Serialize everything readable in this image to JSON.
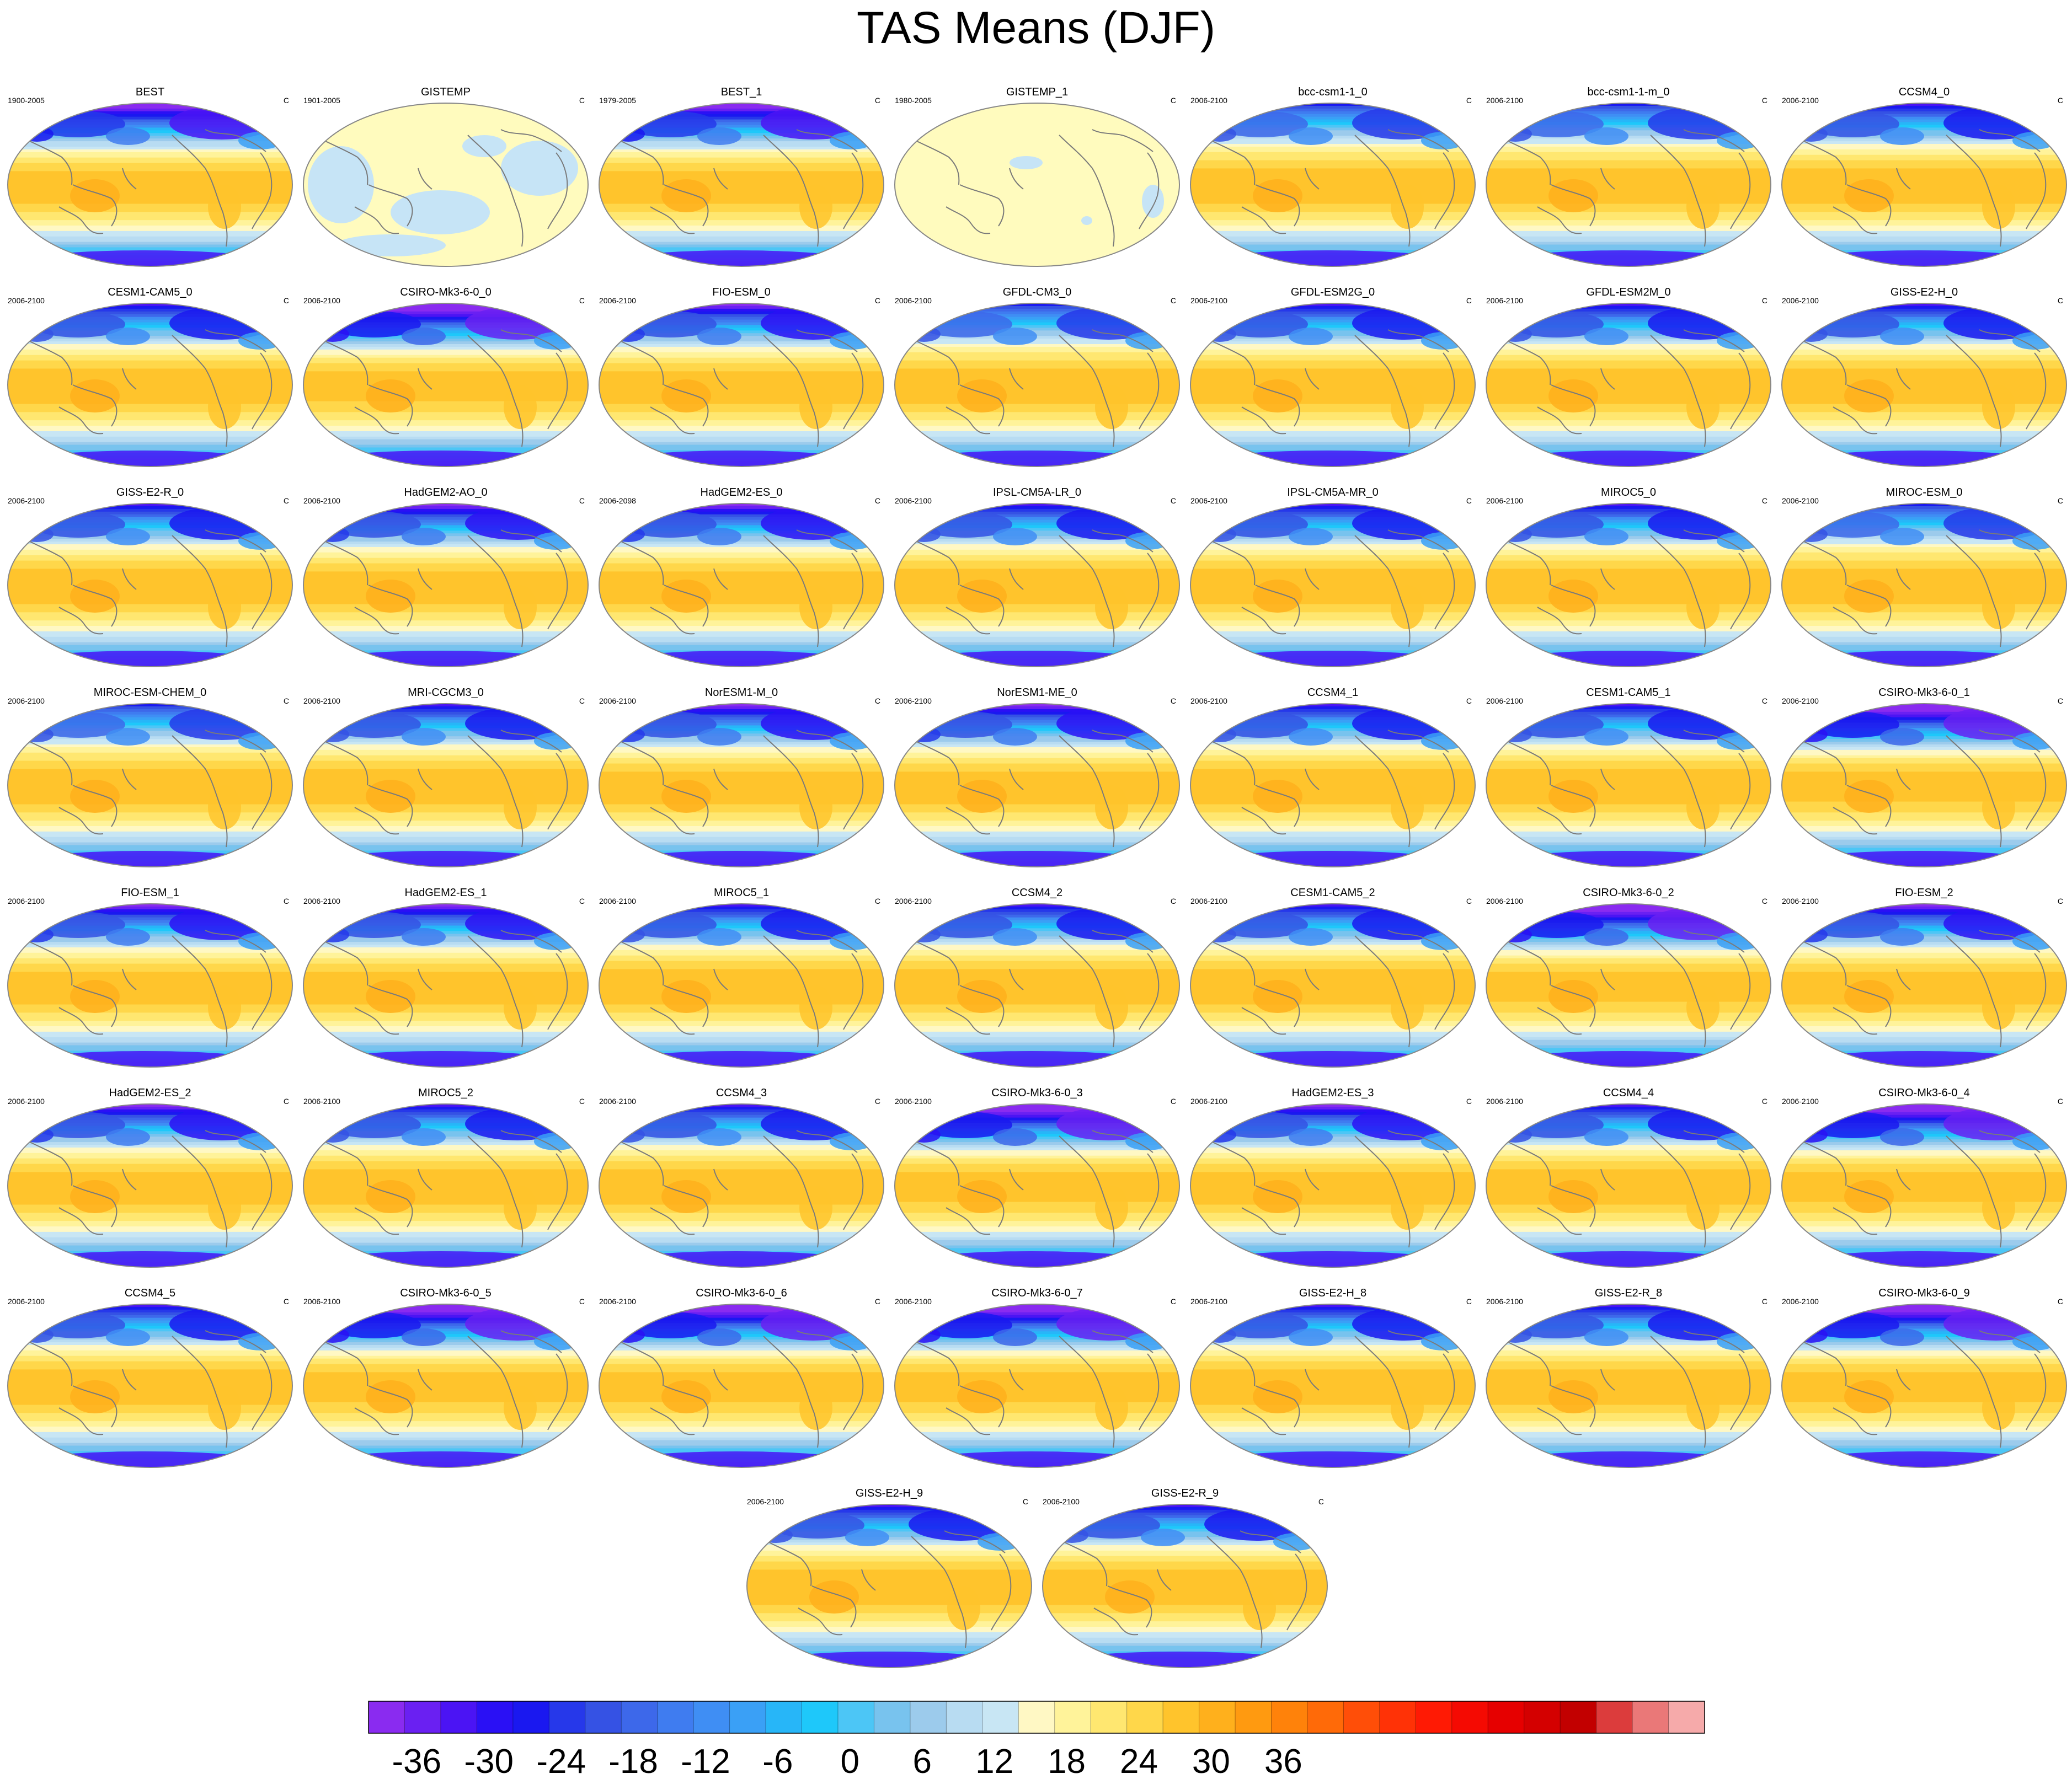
{
  "title": "TAS Means (DJF)",
  "unit": "C",
  "colors": {
    "outline": "#888888",
    "coast": "#7a7a7a",
    "gistemp_fill": "#fffbbe",
    "gistemp_lowfill": "#c6e4f6"
  },
  "chart_data": {
    "type": "heatmap",
    "title": "TAS Means (DJF)",
    "grid_columns": 7,
    "panels": [
      {
        "name": "BEST",
        "period": "1900-2005",
        "style": "full",
        "cold": 1.1
      },
      {
        "name": "GISTEMP",
        "period": "1901-2005",
        "style": "anomaly",
        "cold": 1.0
      },
      {
        "name": "BEST_1",
        "period": "1979-2005",
        "style": "full",
        "cold": 1.1
      },
      {
        "name": "GISTEMP_1",
        "period": "1980-2005",
        "style": "anomaly2",
        "cold": 1.0
      },
      {
        "name": "bcc-csm1-1_0",
        "period": "2006-2100",
        "style": "full",
        "cold": 0.8
      },
      {
        "name": "bcc-csm1-1-m_0",
        "period": "2006-2100",
        "style": "full",
        "cold": 0.8
      },
      {
        "name": "CCSM4_0",
        "period": "2006-2100",
        "style": "full",
        "cold": 0.9
      },
      {
        "name": "CESM1-CAM5_0",
        "period": "2006-2100",
        "style": "full",
        "cold": 0.9
      },
      {
        "name": "CSIRO-Mk3-6-0_0",
        "period": "2006-2100",
        "style": "full",
        "cold": 1.2
      },
      {
        "name": "FIO-ESM_0",
        "period": "2006-2100",
        "style": "full",
        "cold": 1.0
      },
      {
        "name": "GFDL-CM3_0",
        "period": "2006-2100",
        "style": "full",
        "cold": 0.8
      },
      {
        "name": "GFDL-ESM2G_0",
        "period": "2006-2100",
        "style": "full",
        "cold": 0.9
      },
      {
        "name": "GFDL-ESM2M_0",
        "period": "2006-2100",
        "style": "full",
        "cold": 0.9
      },
      {
        "name": "GISS-E2-H_0",
        "period": "2006-2100",
        "style": "full",
        "cold": 0.9
      },
      {
        "name": "GISS-E2-R_0",
        "period": "2006-2100",
        "style": "full",
        "cold": 0.9
      },
      {
        "name": "HadGEM2-AO_0",
        "period": "2006-2100",
        "style": "full",
        "cold": 1.0
      },
      {
        "name": "HadGEM2-ES_0",
        "period": "2006-2098",
        "style": "full",
        "cold": 1.0
      },
      {
        "name": "IPSL-CM5A-LR_0",
        "period": "2006-2100",
        "style": "full",
        "cold": 0.9
      },
      {
        "name": "IPSL-CM5A-MR_0",
        "period": "2006-2100",
        "style": "full",
        "cold": 0.9
      },
      {
        "name": "MIROC5_0",
        "period": "2006-2100",
        "style": "full",
        "cold": 0.9
      },
      {
        "name": "MIROC-ESM_0",
        "period": "2006-2100",
        "style": "full",
        "cold": 0.8
      },
      {
        "name": "MIROC-ESM-CHEM_0",
        "period": "2006-2100",
        "style": "full",
        "cold": 0.8
      },
      {
        "name": "MRI-CGCM3_0",
        "period": "2006-2100",
        "style": "full",
        "cold": 0.9
      },
      {
        "name": "NorESM1-M_0",
        "period": "2006-2100",
        "style": "full",
        "cold": 1.0
      },
      {
        "name": "NorESM1-ME_0",
        "period": "2006-2100",
        "style": "full",
        "cold": 1.0
      },
      {
        "name": "CCSM4_1",
        "period": "2006-2100",
        "style": "full",
        "cold": 0.9
      },
      {
        "name": "CESM1-CAM5_1",
        "period": "2006-2100",
        "style": "full",
        "cold": 0.9
      },
      {
        "name": "CSIRO-Mk3-6-0_1",
        "period": "2006-2100",
        "style": "full",
        "cold": 1.2
      },
      {
        "name": "FIO-ESM_1",
        "period": "2006-2100",
        "style": "full",
        "cold": 1.0
      },
      {
        "name": "HadGEM2-ES_1",
        "period": "2006-2100",
        "style": "full",
        "cold": 1.0
      },
      {
        "name": "MIROC5_1",
        "period": "2006-2100",
        "style": "full",
        "cold": 0.9
      },
      {
        "name": "CCSM4_2",
        "period": "2006-2100",
        "style": "full",
        "cold": 0.9
      },
      {
        "name": "CESM1-CAM5_2",
        "period": "2006-2100",
        "style": "full",
        "cold": 0.9
      },
      {
        "name": "CSIRO-Mk3-6-0_2",
        "period": "2006-2100",
        "style": "full",
        "cold": 1.2
      },
      {
        "name": "FIO-ESM_2",
        "period": "2006-2100",
        "style": "full",
        "cold": 1.0
      },
      {
        "name": "HadGEM2-ES_2",
        "period": "2006-2100",
        "style": "full",
        "cold": 1.0
      },
      {
        "name": "MIROC5_2",
        "period": "2006-2100",
        "style": "full",
        "cold": 0.9
      },
      {
        "name": "CCSM4_3",
        "period": "2006-2100",
        "style": "full",
        "cold": 0.9
      },
      {
        "name": "CSIRO-Mk3-6-0_3",
        "period": "2006-2100",
        "style": "full",
        "cold": 1.2
      },
      {
        "name": "HadGEM2-ES_3",
        "period": "2006-2100",
        "style": "full",
        "cold": 1.0
      },
      {
        "name": "CCSM4_4",
        "period": "2006-2100",
        "style": "full",
        "cold": 0.9
      },
      {
        "name": "CSIRO-Mk3-6-0_4",
        "period": "2006-2100",
        "style": "full",
        "cold": 1.2
      },
      {
        "name": "CCSM4_5",
        "period": "2006-2100",
        "style": "full",
        "cold": 0.9
      },
      {
        "name": "CSIRO-Mk3-6-0_5",
        "period": "2006-2100",
        "style": "full",
        "cold": 1.2
      },
      {
        "name": "CSIRO-Mk3-6-0_6",
        "period": "2006-2100",
        "style": "full",
        "cold": 1.2
      },
      {
        "name": "CSIRO-Mk3-6-0_7",
        "period": "2006-2100",
        "style": "full",
        "cold": 1.2
      },
      {
        "name": "GISS-E2-H_8",
        "period": "2006-2100",
        "style": "full",
        "cold": 0.9
      },
      {
        "name": "GISS-E2-R_8",
        "period": "2006-2100",
        "style": "full",
        "cold": 0.9
      },
      {
        "name": "CSIRO-Mk3-6-0_9",
        "period": "2006-2100",
        "style": "full",
        "cold": 1.2
      },
      {
        "name": "GISS-E2-H_9",
        "period": "2006-2100",
        "style": "full",
        "cold": 0.9
      },
      {
        "name": "GISS-E2-R_9",
        "period": "2006-2100",
        "style": "full",
        "cold": 0.9
      }
    ],
    "colorbar": {
      "min": -40,
      "max": 44,
      "step": 3,
      "tick_labels": [
        "-36",
        "-30",
        "-24",
        "-18",
        "-12",
        "-6",
        "0",
        "6",
        "12",
        "18",
        "24",
        "30",
        "36"
      ],
      "tick_values": [
        -36,
        -30,
        -24,
        -18,
        -12,
        -6,
        0,
        6,
        12,
        18,
        24,
        30,
        36
      ],
      "colors": [
        "#8a2bf0",
        "#6a20f2",
        "#4b14f4",
        "#2a10f5",
        "#1a18f0",
        "#2638ea",
        "#3552e4",
        "#3d68ea",
        "#3f7cf0",
        "#3f8ef4",
        "#3aa0f6",
        "#27b6f8",
        "#1ec8fa",
        "#4cc6f6",
        "#78c3ee",
        "#9ccbec",
        "#b8dcf2",
        "#c8e6f4",
        "#fff8c4",
        "#fff39a",
        "#ffe770",
        "#ffd74a",
        "#ffc42c",
        "#ffb01c",
        "#ff9a10",
        "#ff820a",
        "#ff6a08",
        "#ff4e08",
        "#ff3206",
        "#ff1a04",
        "#f50a02",
        "#e60000",
        "#d40000",
        "#c20000",
        "#dc3c3c",
        "#ea7878",
        "#f6aaaa"
      ]
    }
  }
}
